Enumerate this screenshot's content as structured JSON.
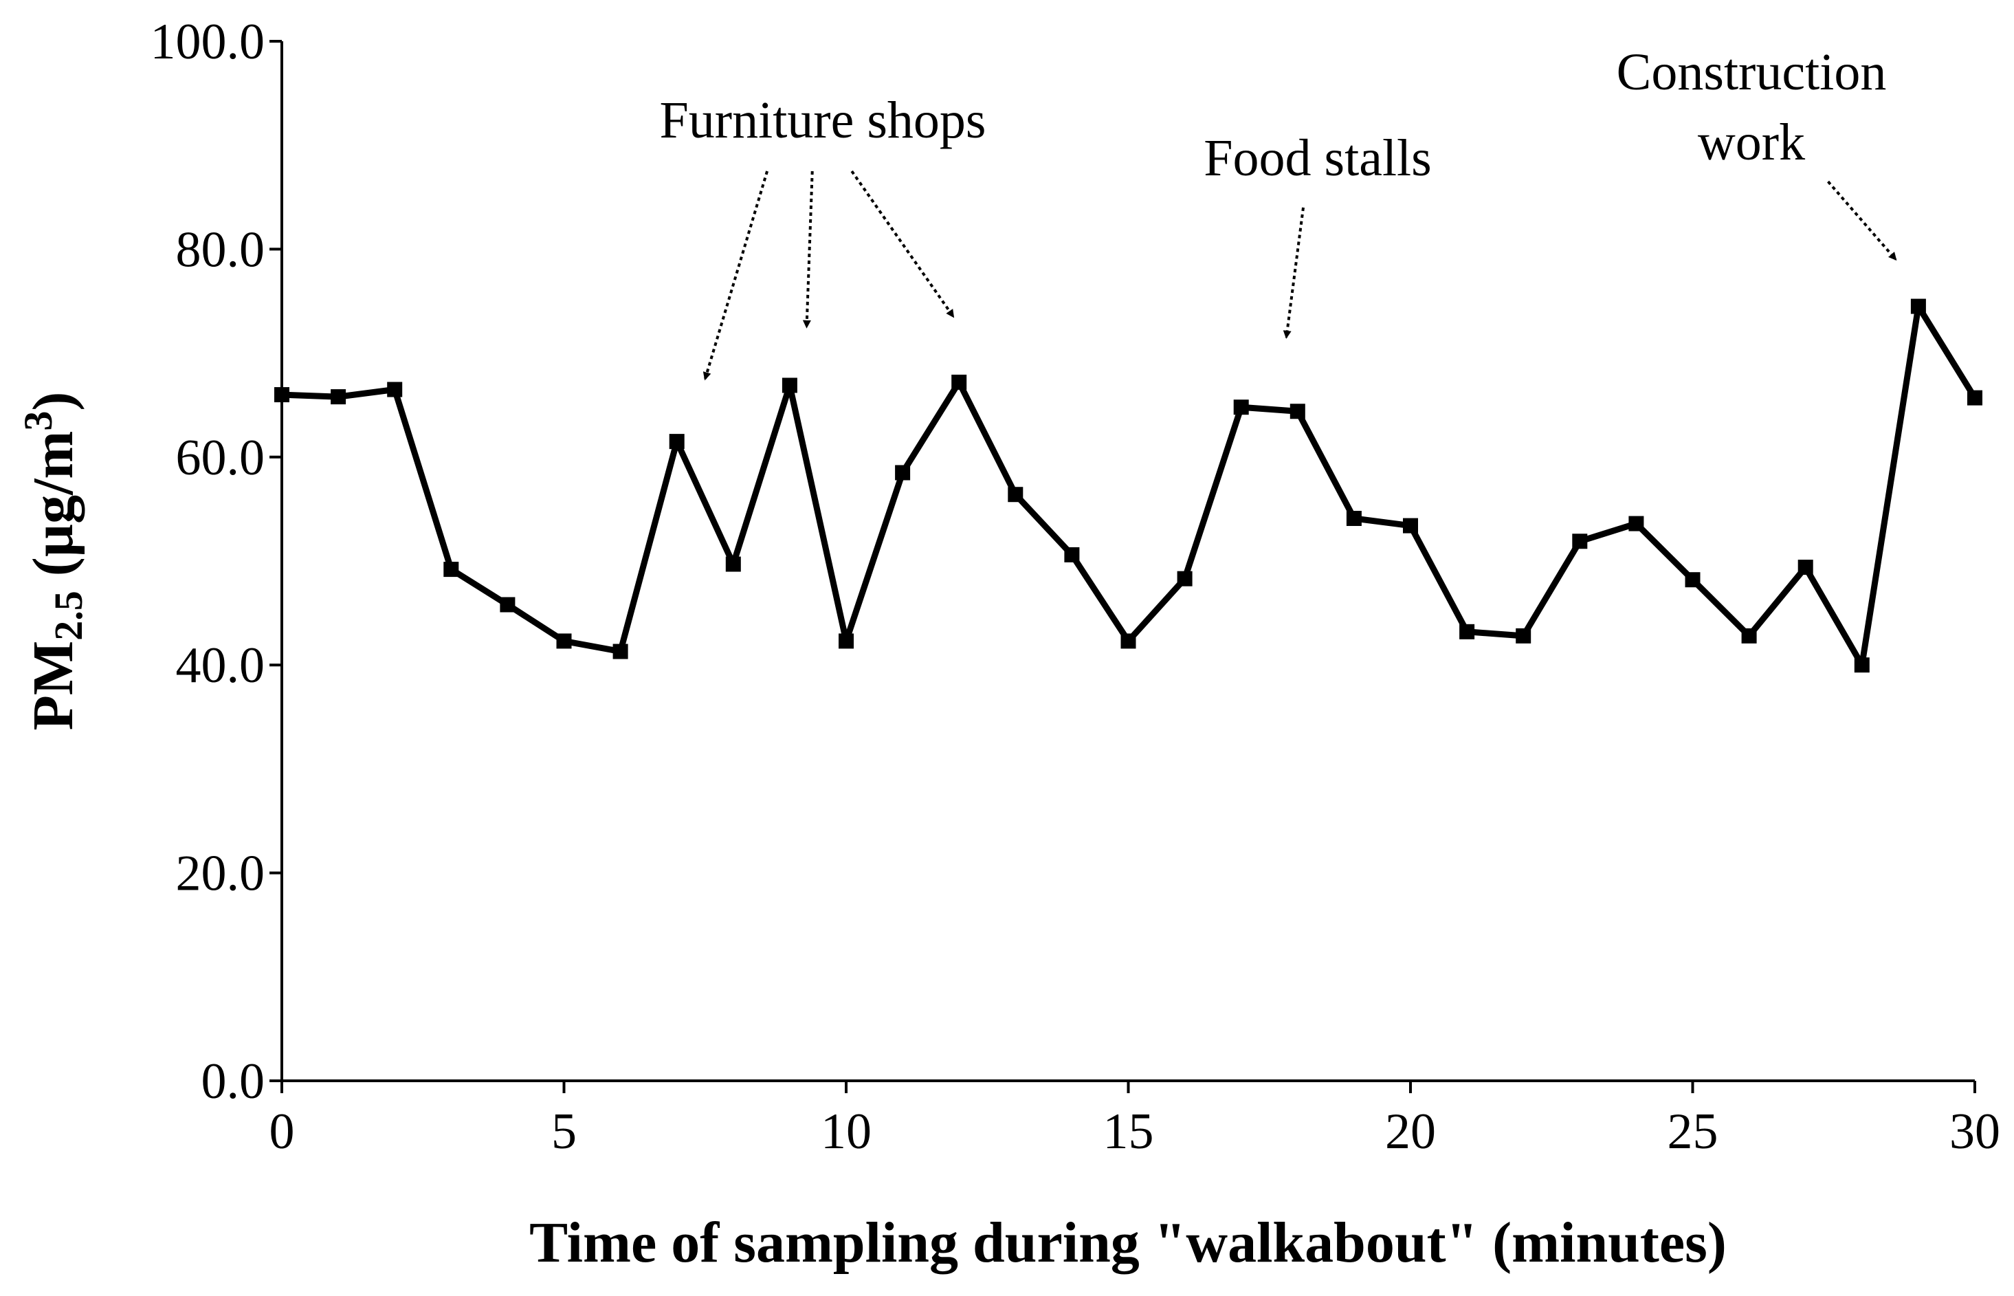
{
  "chart_data": {
    "type": "line",
    "title": "",
    "xlabel": "Time of sampling during \"walkabout\"  (minutes)",
    "ylabel": {
      "main": "PM",
      "subscript": "2.5",
      "units_open": " (µg/m",
      "superscript": "3",
      "units_close": ")"
    },
    "xlim": [
      0,
      30
    ],
    "ylim": [
      0,
      100
    ],
    "x_ticks": [
      0,
      5,
      10,
      15,
      20,
      25,
      30
    ],
    "x_tick_labels": [
      "0",
      "5",
      "10",
      "15",
      "20",
      "25",
      "30"
    ],
    "y_ticks": [
      0,
      20,
      40,
      60,
      80,
      100
    ],
    "y_tick_labels": [
      "0.0",
      "20.0",
      "40.0",
      "60.0",
      "80.0",
      "100.0"
    ],
    "grid": false,
    "series": [
      {
        "name": "PM2.5",
        "color": "#000000",
        "marker": "square",
        "x": [
          0,
          1,
          2,
          3,
          4,
          5,
          6,
          7,
          8,
          9,
          10,
          11,
          12,
          13,
          14,
          15,
          16,
          17,
          18,
          19,
          20,
          21,
          22,
          23,
          24,
          25,
          26,
          27,
          28,
          29,
          30
        ],
        "values": [
          66.0,
          65.8,
          66.5,
          49.2,
          45.8,
          42.3,
          41.3,
          61.5,
          49.7,
          66.9,
          42.3,
          58.5,
          67.2,
          56.4,
          50.6,
          42.3,
          48.3,
          64.8,
          64.4,
          54.1,
          53.4,
          43.2,
          42.8,
          51.9,
          53.6,
          48.2,
          42.8,
          49.4,
          40.0,
          74.5,
          65.7
        ]
      }
    ],
    "annotations": [
      {
        "id": "furniture",
        "lines": [
          "Furniture shops"
        ],
        "arrows": [
          {
            "from": [
              8.6,
              87.5
            ],
            "to": [
              7.5,
              67.5
            ]
          },
          {
            "from": [
              9.4,
              87.5
            ],
            "to": [
              9.3,
              72.5
            ]
          },
          {
            "from": [
              10.1,
              87.5
            ],
            "to": [
              11.9,
              73.5
            ]
          }
        ]
      },
      {
        "id": "food",
        "lines": [
          "Food stalls"
        ],
        "arrows": [
          {
            "from": [
              18.1,
              84.0
            ],
            "to": [
              17.8,
              71.5
            ]
          }
        ]
      },
      {
        "id": "construction",
        "lines": [
          "Construction",
          "work"
        ],
        "arrows": [
          {
            "from": [
              27.4,
              86.5
            ],
            "to": [
              28.6,
              79.0
            ]
          }
        ]
      }
    ]
  }
}
